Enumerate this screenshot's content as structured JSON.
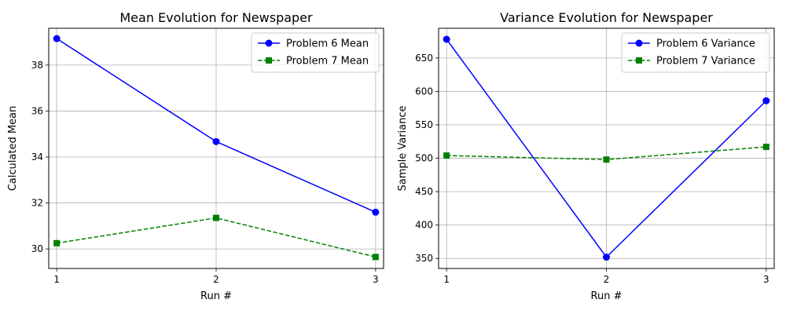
{
  "chart_data": [
    {
      "type": "line",
      "title": "Mean Evolution for Newspaper",
      "xlabel": "Run #",
      "ylabel": "Calculated Mean",
      "x": [
        1,
        2,
        3
      ],
      "xlim": [
        0.95,
        3.05
      ],
      "ylim": [
        29.15,
        39.6
      ],
      "xticks": [
        1,
        2,
        3
      ],
      "yticks": [
        30,
        32,
        34,
        36,
        38
      ],
      "grid": true,
      "legend_position": "top-right",
      "series": [
        {
          "name": "Problem 6 Mean",
          "values": [
            39.15,
            34.67,
            31.6
          ],
          "color": "#0000ff",
          "linestyle": "solid",
          "marker": "circle"
        },
        {
          "name": "Problem 7 Mean",
          "values": [
            30.25,
            31.35,
            29.65
          ],
          "color": "#008000",
          "linestyle": "dashed",
          "marker": "square"
        }
      ]
    },
    {
      "type": "line",
      "title": "Variance Evolution for Newspaper",
      "xlabel": "Run #",
      "ylabel": "Sample Variance",
      "x": [
        1,
        2,
        3
      ],
      "xlim": [
        0.95,
        3.05
      ],
      "ylim": [
        335.0,
        694.5
      ],
      "xticks": [
        1,
        2,
        3
      ],
      "yticks": [
        350,
        400,
        450,
        500,
        550,
        600,
        650
      ],
      "grid": true,
      "legend_position": "top-right",
      "series": [
        {
          "name": "Problem 6 Variance",
          "values": [
            678,
            352,
            586
          ],
          "color": "#0000ff",
          "linestyle": "solid",
          "marker": "circle"
        },
        {
          "name": "Problem 7 Variance",
          "values": [
            504,
            498,
            517
          ],
          "color": "#008000",
          "linestyle": "dashed",
          "marker": "square"
        }
      ]
    }
  ]
}
